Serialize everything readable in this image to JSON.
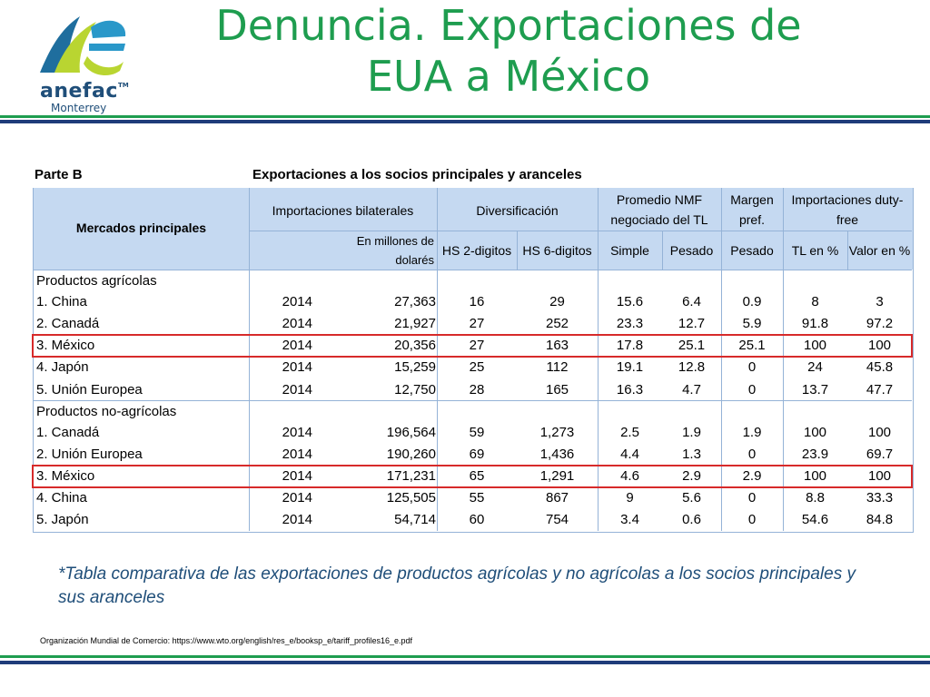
{
  "logo": {
    "word": "anefac",
    "tm": "TM",
    "city": "Monterrey"
  },
  "title": {
    "line1": "Denuncia. Exportaciones de",
    "line2": "EUA a México"
  },
  "table": {
    "part_label": "Parte B",
    "caption": "Exportaciones a los socios principales y aranceles",
    "headers": {
      "mercados": "Mercados principales",
      "importaciones": "Importaciones bilaterales",
      "unidad": "En millones de dolarés",
      "diversificacion": "Diversificación",
      "hs2": "HS 2-digitos",
      "hs6": "HS 6-digitos",
      "promedio": "Promedio NMF negociado del TL",
      "simple": "Simple",
      "pesado": "Pesado",
      "margen": "Margen pref.",
      "margen_pesado": "Pesado",
      "dutyfree": "Importaciones duty-free",
      "tl_pct": "TL en %",
      "valor_pct": "Valor en %"
    },
    "sections": [
      {
        "label": "Productos agrícolas",
        "rows": [
          {
            "name": "1. China",
            "year": "2014",
            "value": "27,363",
            "hs2": "16",
            "hs6": "29",
            "simple": "15.6",
            "pesado": "6.4",
            "margen": "0.9",
            "tl": "8",
            "valor": "3"
          },
          {
            "name": "2. Canadá",
            "year": "2014",
            "value": "21,927",
            "hs2": "27",
            "hs6": "252",
            "simple": "23.3",
            "pesado": "12.7",
            "margen": "5.9",
            "tl": "91.8",
            "valor": "97.2"
          },
          {
            "name": "3. México",
            "year": "2014",
            "value": "20,356",
            "hs2": "27",
            "hs6": "163",
            "simple": "17.8",
            "pesado": "25.1",
            "margen": "25.1",
            "tl": "100",
            "valor": "100"
          },
          {
            "name": "4. Japón",
            "year": "2014",
            "value": "15,259",
            "hs2": "25",
            "hs6": "112",
            "simple": "19.1",
            "pesado": "12.8",
            "margen": "0",
            "tl": "24",
            "valor": "45.8"
          },
          {
            "name": "5. Unión Europea",
            "year": "2014",
            "value": "12,750",
            "hs2": "28",
            "hs6": "165",
            "simple": "16.3",
            "pesado": "4.7",
            "margen": "0",
            "tl": "13.7",
            "valor": "47.7"
          }
        ]
      },
      {
        "label": "Productos no-agrícolas",
        "rows": [
          {
            "name": "1. Canadá",
            "year": "2014",
            "value": "196,564",
            "hs2": "59",
            "hs6": "1,273",
            "simple": "2.5",
            "pesado": "1.9",
            "margen": "1.9",
            "tl": "100",
            "valor": "100"
          },
          {
            "name": "2. Unión Europea",
            "year": "2014",
            "value": "190,260",
            "hs2": "69",
            "hs6": "1,436",
            "simple": "4.4",
            "pesado": "1.3",
            "margen": "0",
            "tl": "23.9",
            "valor": "69.7"
          },
          {
            "name": "3. México",
            "year": "2014",
            "value": "171,231",
            "hs2": "65",
            "hs6": "1,291",
            "simple": "4.6",
            "pesado": "2.9",
            "margen": "2.9",
            "tl": "100",
            "valor": "100"
          },
          {
            "name": "4. China",
            "year": "2014",
            "value": "125,505",
            "hs2": "55",
            "hs6": "867",
            "simple": "9",
            "pesado": "5.6",
            "margen": "0",
            "tl": "8.8",
            "valor": "33.3"
          },
          {
            "name": "5. Japón",
            "year": "2014",
            "value": "54,714",
            "hs2": "60",
            "hs6": "754",
            "simple": "3.4",
            "pesado": "0.6",
            "margen": "0",
            "tl": "54.6",
            "valor": "84.8"
          }
        ]
      }
    ]
  },
  "note": "*Tabla comparativa de las exportaciones de productos agrícolas y no agrícolas a los socios principales y sus aranceles",
  "source": "Organización Mundial de Comercio: https://www.wto.org/english/res_e/booksp_e/tariff_profiles16_e.pdf",
  "colors": {
    "title_green": "#1e9d4f",
    "navy": "#1f4e79",
    "highlight_red": "#d72a2a",
    "header_blue": "#c5d9f1"
  }
}
